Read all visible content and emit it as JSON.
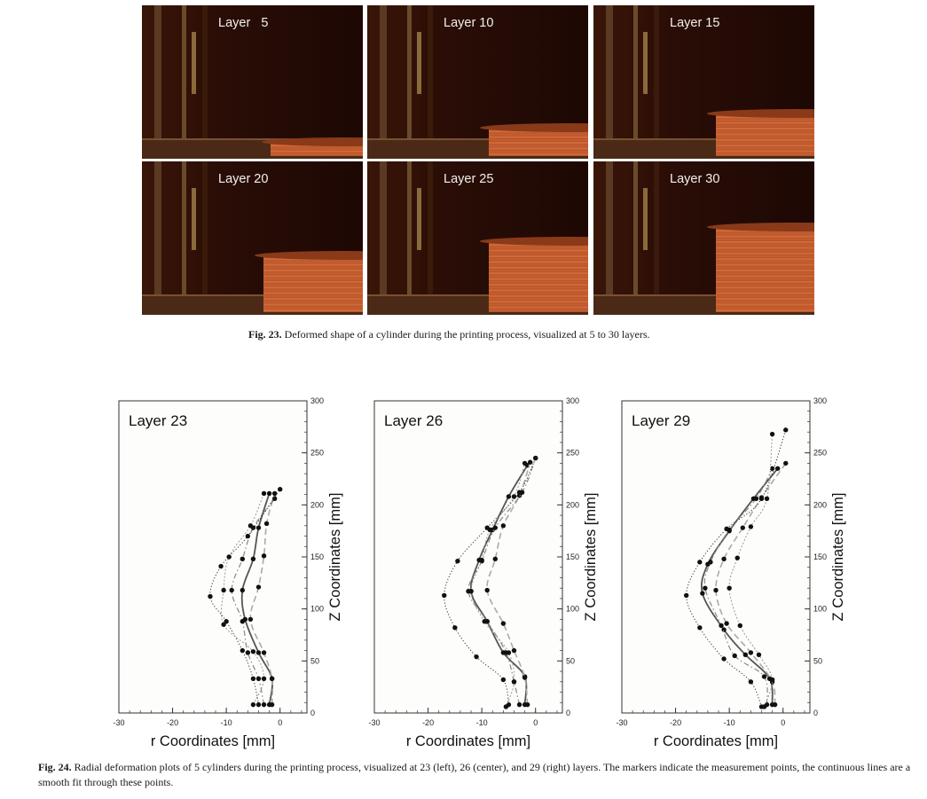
{
  "fig23": {
    "panels": [
      {
        "label": "Layer   5",
        "layers": 5
      },
      {
        "label": "Layer 10",
        "layers": 10
      },
      {
        "label": "Layer 15",
        "layers": 15
      },
      {
        "label": "Layer 20",
        "layers": 20
      },
      {
        "label": "Layer 25",
        "layers": 25
      },
      {
        "label": "Layer 30",
        "layers": 30
      }
    ],
    "caption_label": "Fig. 23.",
    "caption_text": " Deformed shape of a cylinder during the printing process, visualized at 5 to 30 layers."
  },
  "fig24": {
    "caption_label": "Fig. 24.",
    "caption_text": " Radial deformation plots of 5 cylinders during the printing process, visualized at 23 (left), 26 (center), and 29 (right) layers. The markers indicate the measurement points, the continuous lines are a smooth fit through these points."
  },
  "chart_data": [
    {
      "type": "line",
      "title": "Layer 23",
      "xlabel": "r Coordinates [mm]",
      "ylabel": "Z Coordinates [mm]",
      "xlim": [
        -30,
        5
      ],
      "ylim": [
        0,
        300
      ],
      "x_ticks": [
        -30,
        -20,
        -10,
        0
      ],
      "y_ticks": [
        0,
        50,
        100,
        150,
        200,
        250,
        300
      ],
      "series": [
        {
          "style": "solid",
          "points": [
            [
              -2,
              8
            ],
            [
              -1.5,
              33
            ],
            [
              -4,
              58
            ],
            [
              -6.5,
              90
            ],
            [
              -7,
              118
            ],
            [
              -5,
              148
            ],
            [
              -4,
              178
            ],
            [
              -2,
              211
            ]
          ]
        },
        {
          "style": "dashed",
          "points": [
            [
              -1.5,
              8
            ],
            [
              -1.5,
              33
            ],
            [
              -3,
              58
            ],
            [
              -5.5,
              90
            ],
            [
              -4,
              121
            ],
            [
              -3,
              151
            ],
            [
              -2.5,
              182
            ],
            [
              -1,
              211
            ]
          ]
        },
        {
          "style": "dash-dot",
          "points": [
            [
              -3,
              8
            ],
            [
              -4,
              33
            ],
            [
              -6,
              58
            ],
            [
              -7,
              88
            ],
            [
              -9,
              118
            ],
            [
              -7,
              148
            ],
            [
              -5,
              178
            ],
            [
              -1,
              206
            ]
          ]
        },
        {
          "style": "dotted",
          "points": [
            [
              -4,
              8
            ],
            [
              -5,
              33
            ],
            [
              -7,
              60
            ],
            [
              -10,
              88
            ],
            [
              -13,
              112
            ],
            [
              -11,
              141
            ],
            [
              -6,
              170
            ],
            [
              0,
              215
            ]
          ]
        },
        {
          "style": "dotted-light",
          "points": [
            [
              -5,
              8
            ],
            [
              -3,
              33
            ],
            [
              -5,
              59
            ],
            [
              -10.5,
              85
            ],
            [
              -10.5,
              118
            ],
            [
              -9.5,
              150
            ],
            [
              -5.5,
              180
            ],
            [
              -3,
              211
            ]
          ]
        }
      ]
    },
    {
      "type": "line",
      "title": "Layer 26",
      "xlabel": "r Coordinates [mm]",
      "ylabel": "Z Coordinates [mm]",
      "xlim": [
        -30,
        5
      ],
      "ylim": [
        0,
        300
      ],
      "x_ticks": [
        -30,
        -20,
        -10,
        0
      ],
      "y_ticks": [
        0,
        50,
        100,
        150,
        200,
        250,
        300
      ],
      "series": [
        {
          "style": "solid",
          "points": [
            [
              -2,
              8
            ],
            [
              -2,
              35
            ],
            [
              -6,
              58
            ],
            [
              -9,
              88
            ],
            [
              -12,
              117
            ],
            [
              -10.5,
              147
            ],
            [
              -8,
              176
            ],
            [
              -5,
              208
            ],
            [
              -1.5,
              238
            ]
          ]
        },
        {
          "style": "dashed",
          "points": [
            [
              -1.5,
              8
            ],
            [
              -2,
              34
            ],
            [
              -4,
              60
            ],
            [
              -6,
              86
            ],
            [
              -9,
              118
            ],
            [
              -7.5,
              148
            ],
            [
              -6,
              180
            ],
            [
              -3,
              209
            ],
            [
              -1,
              241
            ]
          ]
        },
        {
          "style": "dash-dot",
          "points": [
            [
              -3,
              8
            ],
            [
              -4,
              30
            ],
            [
              -5.5,
              58
            ],
            [
              -9,
              88
            ],
            [
              -12.5,
              117
            ],
            [
              -10,
              146
            ],
            [
              -7.5,
              178
            ],
            [
              -2.5,
              212
            ],
            [
              0,
              245
            ]
          ]
        },
        {
          "style": "dotted",
          "points": [
            [
              -5,
              8
            ],
            [
              -6,
              32
            ],
            [
              -11,
              54
            ],
            [
              -15,
              82
            ],
            [
              -17,
              113
            ],
            [
              -14.5,
              146
            ],
            [
              -9,
              178
            ],
            [
              -3,
              212
            ],
            [
              0,
              245
            ]
          ]
        },
        {
          "style": "dotted-light",
          "points": [
            [
              -5.5,
              6
            ],
            [
              -4,
              30
            ],
            [
              -5,
              58
            ],
            [
              -9.5,
              88
            ],
            [
              -12,
              117
            ],
            [
              -10,
              147
            ],
            [
              -8.5,
              176
            ],
            [
              -4,
              208
            ],
            [
              -2,
              240
            ]
          ]
        }
      ]
    },
    {
      "type": "line",
      "title": "Layer 29",
      "xlabel": "r Coordinates [mm]",
      "ylabel": "Z Coordinates [mm]",
      "xlim": [
        -30,
        5
      ],
      "ylim": [
        0,
        300
      ],
      "x_ticks": [
        -30,
        -20,
        -10,
        0
      ],
      "y_ticks": [
        0,
        50,
        100,
        150,
        200,
        250,
        300
      ],
      "series": [
        {
          "style": "solid",
          "points": [
            [
              -2,
              8
            ],
            [
              -2.5,
              33
            ],
            [
              -7,
              56
            ],
            [
              -11,
              80
            ],
            [
              -15,
              115
            ],
            [
              -14,
              143
            ],
            [
              -10,
              175
            ],
            [
              -5.5,
              206
            ],
            [
              -1,
              235
            ]
          ]
        },
        {
          "style": "dashed",
          "points": [
            [
              -1.5,
              8
            ],
            [
              -2,
              30
            ],
            [
              -6,
              58
            ],
            [
              -10.5,
              86
            ],
            [
              -12.5,
              118
            ],
            [
              -11,
              148
            ],
            [
              -7.5,
              178
            ],
            [
              -4,
              207
            ],
            [
              0.5,
              240
            ]
          ]
        },
        {
          "style": "dash-dot",
          "points": [
            [
              -3,
              8
            ],
            [
              -3.5,
              35
            ],
            [
              -9,
              55
            ],
            [
              -11.5,
              84
            ],
            [
              -14.5,
              120
            ],
            [
              -13.5,
              145
            ],
            [
              -10,
              176
            ],
            [
              -5,
              206
            ],
            [
              -2,
              235
            ]
          ]
        },
        {
          "style": "dotted",
          "points": [
            [
              -4,
              6
            ],
            [
              -6,
              30
            ],
            [
              -11,
              52
            ],
            [
              -15.5,
              82
            ],
            [
              -18,
              113
            ],
            [
              -15.5,
              145
            ],
            [
              -10.5,
              177
            ],
            [
              -4,
              206
            ],
            [
              0.5,
              272
            ]
          ]
        },
        {
          "style": "dotted-light",
          "points": [
            [
              -3.5,
              6
            ],
            [
              -2,
              32
            ],
            [
              -4.5,
              56
            ],
            [
              -8,
              84
            ],
            [
              -10,
              120
            ],
            [
              -8.5,
              149
            ],
            [
              -6,
              179
            ],
            [
              -3,
              206
            ],
            [
              -2,
              268
            ]
          ]
        }
      ]
    }
  ]
}
